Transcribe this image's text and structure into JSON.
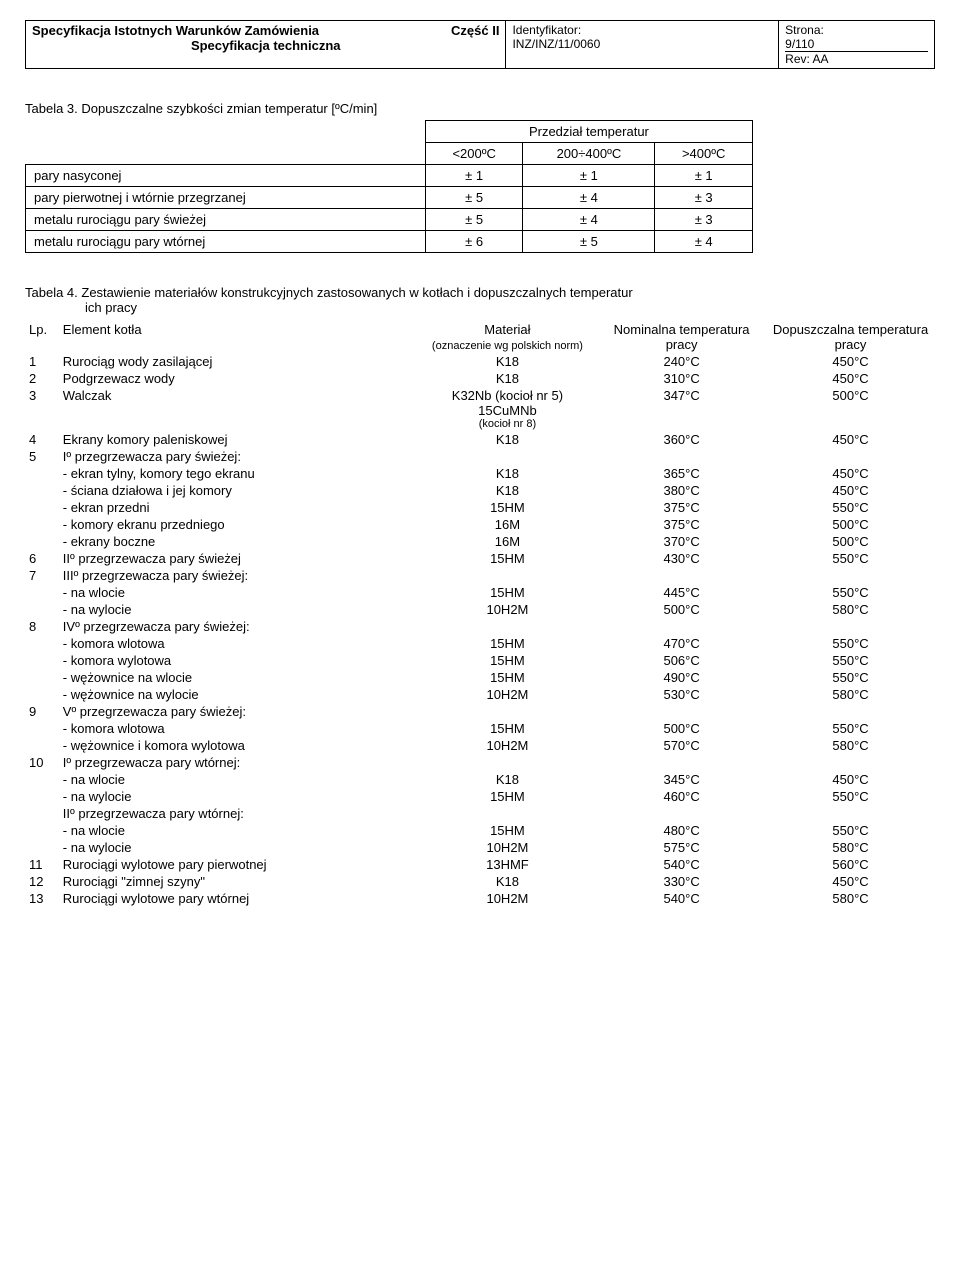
{
  "header": {
    "title_left": "Specyfikacja Istotnych Warunków Zamówienia",
    "title_right": "Część II",
    "subtitle": "Specyfikacja techniczna",
    "ident_label": "Identyfikator:",
    "ident_value": "INZ/INZ/11/0060",
    "strona_label": "Strona:",
    "strona_value": "9/110",
    "rev": "Rev: AA"
  },
  "tab3": {
    "caption": "Tabela 3. Dopuszczalne szybkości zmian temperatur [ºC/min]",
    "range_header": "Przedział temperatur",
    "cols": [
      "<200ºC",
      "200÷400ºC",
      ">400ºC"
    ],
    "rows": [
      {
        "label": "pary nasyconej",
        "v": [
          "± 1",
          "± 1",
          "± 1"
        ]
      },
      {
        "label": "pary pierwotnej i wtórnie przegrzanej",
        "v": [
          "± 5",
          "± 4",
          "± 3"
        ]
      },
      {
        "label": "metalu rurociągu pary świeżej",
        "v": [
          "± 5",
          "± 4",
          "± 3"
        ]
      },
      {
        "label": "metalu rurociągu pary wtórnej",
        "v": [
          "± 6",
          "± 5",
          "± 4"
        ]
      }
    ]
  },
  "tab4": {
    "caption_line1": "Tabela 4. Zestawienie materiałów konstrukcyjnych zastosowanych w kotłach i dopuszczalnych temperatur",
    "caption_line2": "ich pracy",
    "head": {
      "lp": "Lp.",
      "element": "Element kotła",
      "material": "Materiał",
      "material_sub": "(oznaczenie wg polskich norm)",
      "nominal": "Nominalna temperatura pracy",
      "dopusz": "Dopuszczalna temperatura pracy"
    },
    "rows": [
      {
        "lp": "1",
        "el": "Rurociąg wody zasilającej",
        "mat": "K18",
        "nom": "240°C",
        "dop": "450°C"
      },
      {
        "lp": "2",
        "el": "Podgrzewacz wody",
        "mat": "K18",
        "nom": "310°C",
        "dop": "450°C"
      },
      {
        "lp": "3",
        "el": "Walczak",
        "mat": "K32Nb (kocioł nr 5)\n15CuMNb\n(kocioł nr 8)",
        "nom": "347°C",
        "dop": "500°C",
        "mat_multiline": true
      },
      {
        "lp": "4",
        "el": "Ekrany komory paleniskowej",
        "mat": "K18",
        "nom": "360°C",
        "dop": "450°C"
      },
      {
        "lp": "5",
        "el": "Iº przegrzewacza pary świeżej:",
        "mat": "",
        "nom": "",
        "dop": ""
      },
      {
        "lp": "",
        "el": "- ekran tylny, komory tego ekranu",
        "mat": "K18",
        "nom": "365°C",
        "dop": "450°C",
        "sub": true
      },
      {
        "lp": "",
        "el": "- ściana działowa i jej komory",
        "mat": "K18",
        "nom": "380°C",
        "dop": "450°C",
        "sub": true
      },
      {
        "lp": "",
        "el": "- ekran przedni",
        "mat": "15HM",
        "nom": "375°C",
        "dop": "550°C",
        "sub": true
      },
      {
        "lp": "",
        "el": "- komory ekranu przedniego",
        "mat": "16M",
        "nom": "375°C",
        "dop": "500°C",
        "sub": true
      },
      {
        "lp": "",
        "el": "- ekrany boczne",
        "mat": "16M",
        "nom": "370°C",
        "dop": "500°C",
        "sub": true
      },
      {
        "lp": "6",
        "el": "IIº przegrzewacza pary świeżej",
        "mat": "15HM",
        "nom": "430°C",
        "dop": "550°C"
      },
      {
        "lp": "7",
        "el": "IIIº przegrzewacza pary świeżej:",
        "mat": "",
        "nom": "",
        "dop": ""
      },
      {
        "lp": "",
        "el": "- na wlocie",
        "mat": "15HM",
        "nom": "445°C",
        "dop": "550°C",
        "sub": true
      },
      {
        "lp": "",
        "el": "- na wylocie",
        "mat": "10H2M",
        "nom": "500°C",
        "dop": "580°C",
        "sub": true
      },
      {
        "lp": "8",
        "el": "IVº przegrzewacza pary świeżej:",
        "mat": "",
        "nom": "",
        "dop": ""
      },
      {
        "lp": "",
        "el": "- komora wlotowa",
        "mat": "15HM",
        "nom": "470°C",
        "dop": "550°C",
        "sub": true
      },
      {
        "lp": "",
        "el": "- komora wylotowa",
        "mat": "15HM",
        "nom": "506°C",
        "dop": "550°C",
        "sub": true
      },
      {
        "lp": "",
        "el": "- wężownice na wlocie",
        "mat": "15HM",
        "nom": "490°C",
        "dop": "550°C",
        "sub": true
      },
      {
        "lp": "",
        "el": "- wężownice na wylocie",
        "mat": "10H2M",
        "nom": "530°C",
        "dop": "580°C",
        "sub": true
      },
      {
        "lp": "9",
        "el": "Vº przegrzewacza pary świeżej:",
        "mat": "",
        "nom": "",
        "dop": ""
      },
      {
        "lp": "",
        "el": "- komora wlotowa",
        "mat": "15HM",
        "nom": "500°C",
        "dop": "550°C",
        "sub": true
      },
      {
        "lp": "",
        "el": "- wężownice i komora wylotowa",
        "mat": "10H2M",
        "nom": "570°C",
        "dop": "580°C",
        "sub": true
      },
      {
        "lp": "10",
        "el": "Iº przegrzewacza pary wtórnej:",
        "mat": "",
        "nom": "",
        "dop": ""
      },
      {
        "lp": "",
        "el": "- na wlocie",
        "mat": "K18",
        "nom": "345°C",
        "dop": "450°C",
        "sub": true
      },
      {
        "lp": "",
        "el": "- na wylocie",
        "mat": "15HM",
        "nom": "460°C",
        "dop": "550°C",
        "sub": true
      },
      {
        "lp": "",
        "el": "IIº przegrzewacza pary wtórnej:",
        "mat": "",
        "nom": "",
        "dop": ""
      },
      {
        "lp": "",
        "el": "- na wlocie",
        "mat": "15HM",
        "nom": "480°C",
        "dop": "550°C",
        "sub": true
      },
      {
        "lp": "",
        "el": "- na wylocie",
        "mat": "10H2M",
        "nom": "575°C",
        "dop": "580°C",
        "sub": true
      },
      {
        "lp": "11",
        "el": "Rurociągi wylotowe pary pierwotnej",
        "mat": "13HMF",
        "nom": "540°C",
        "dop": "560°C"
      },
      {
        "lp": "12",
        "el": "Rurociągi \"zimnej szyny\"",
        "mat": "K18",
        "nom": "330°C",
        "dop": "450°C"
      },
      {
        "lp": "13",
        "el": "Rurociągi wylotowe pary wtórnej",
        "mat": "10H2M",
        "nom": "540°C",
        "dop": "580°C"
      }
    ]
  }
}
